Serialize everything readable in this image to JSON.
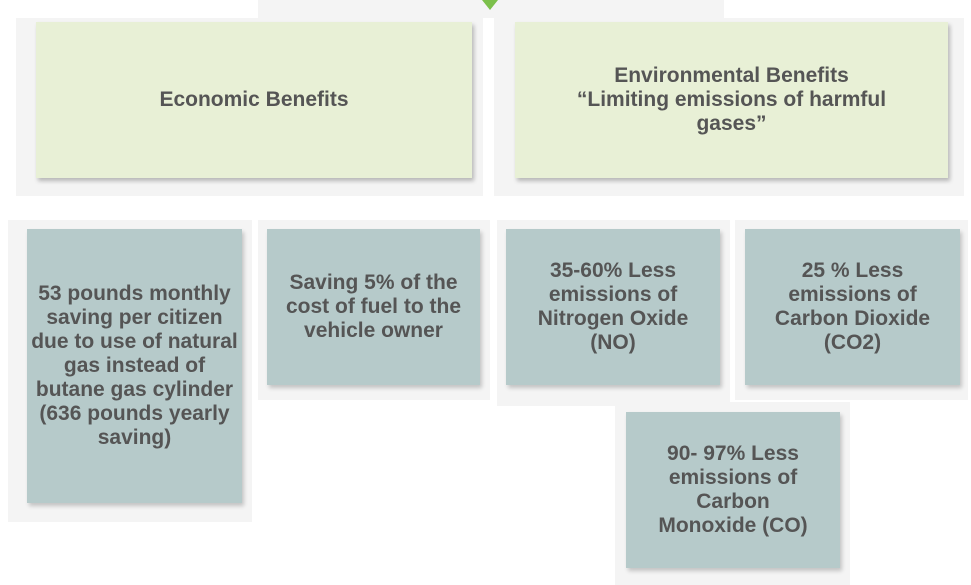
{
  "nodes": [
    {
      "label": "Economic Benefits"
    },
    {
      "label": "Environmental Benefits",
      "sublabel": "“Limiting emissions of harmful gases”"
    },
    {
      "label": "53 pounds monthly saving per citizen due to use of natural gas instead of butane gas cylinder (636 pounds yearly saving)"
    },
    {
      "label": "Saving 5% of the cost of fuel to the vehicle owner"
    },
    {
      "label": "35-60% Less emissions of Nitrogen Oxide (NO)"
    },
    {
      "label": "25 % Less emissions of Carbon Dioxide (CO2)"
    },
    {
      "label": "90- 97% Less emissions of Carbon Monoxide (CO)"
    }
  ]
}
